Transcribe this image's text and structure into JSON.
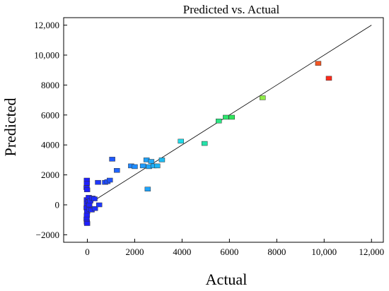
{
  "chart_data": {
    "type": "scatter",
    "title": "Predicted vs. Actual",
    "xlabel": "Actual",
    "ylabel": "Predicted",
    "xlim": [
      -1000,
      12500
    ],
    "ylim": [
      -2500,
      12500
    ],
    "x_ticks": [
      0,
      2000,
      4000,
      6000,
      8000,
      10000,
      12000
    ],
    "x_tick_labels": [
      "0",
      "2000",
      "4000",
      "6000",
      "8000",
      "10,000",
      "12,000"
    ],
    "y_ticks": [
      -2000,
      0,
      2000,
      4000,
      6000,
      8000,
      10000,
      12000
    ],
    "y_tick_labels": [
      "−2000",
      "0",
      "2000",
      "4000",
      "6000",
      "8000",
      "10,000",
      "12,000"
    ],
    "reference_line": {
      "from": [
        0,
        0
      ],
      "to": [
        12000,
        12000
      ]
    },
    "color_scale": [
      "#1f1fff",
      "#1f8fff",
      "#1fe0e6",
      "#2ee65a",
      "#c8f03c",
      "#ff2a1a"
    ],
    "color_range": [
      0,
      10200
    ],
    "grid": false,
    "legend": "none",
    "points": [
      {
        "x": -20,
        "y": 1650
      },
      {
        "x": -20,
        "y": 1450
      },
      {
        "x": -30,
        "y": 1150
      },
      {
        "x": -10,
        "y": 1000
      },
      {
        "x": -20,
        "y": 350
      },
      {
        "x": -20,
        "y": 100
      },
      {
        "x": -30,
        "y": -200
      },
      {
        "x": -10,
        "y": -450
      },
      {
        "x": -20,
        "y": -700
      },
      {
        "x": -30,
        "y": -950
      },
      {
        "x": -20,
        "y": -1150
      },
      {
        "x": -10,
        "y": -1250
      },
      {
        "x": 50,
        "y": 200
      },
      {
        "x": 60,
        "y": 500
      },
      {
        "x": 80,
        "y": 0
      },
      {
        "x": 100,
        "y": -300
      },
      {
        "x": 120,
        "y": 250
      },
      {
        "x": 180,
        "y": -350
      },
      {
        "x": 220,
        "y": 450
      },
      {
        "x": 300,
        "y": 400
      },
      {
        "x": 320,
        "y": -250
      },
      {
        "x": 450,
        "y": 1500
      },
      {
        "x": 500,
        "y": 0
      },
      {
        "x": 750,
        "y": 1500
      },
      {
        "x": 850,
        "y": 1550
      },
      {
        "x": 950,
        "y": 1650
      },
      {
        "x": 1050,
        "y": 3050
      },
      {
        "x": 1250,
        "y": 2300
      },
      {
        "x": 1850,
        "y": 2600
      },
      {
        "x": 2000,
        "y": 2550
      },
      {
        "x": 2350,
        "y": 2600
      },
      {
        "x": 2500,
        "y": 3000
      },
      {
        "x": 2550,
        "y": 1050
      },
      {
        "x": 2600,
        "y": 2550
      },
      {
        "x": 2700,
        "y": 2900
      },
      {
        "x": 2800,
        "y": 2600
      },
      {
        "x": 2950,
        "y": 2600
      },
      {
        "x": 3150,
        "y": 3000
      },
      {
        "x": 3950,
        "y": 4250
      },
      {
        "x": 4950,
        "y": 4100
      },
      {
        "x": 5550,
        "y": 5600
      },
      {
        "x": 5850,
        "y": 5850
      },
      {
        "x": 6100,
        "y": 5850
      },
      {
        "x": 7400,
        "y": 7150
      },
      {
        "x": 9750,
        "y": 9450
      },
      {
        "x": 10200,
        "y": 8450
      }
    ]
  }
}
